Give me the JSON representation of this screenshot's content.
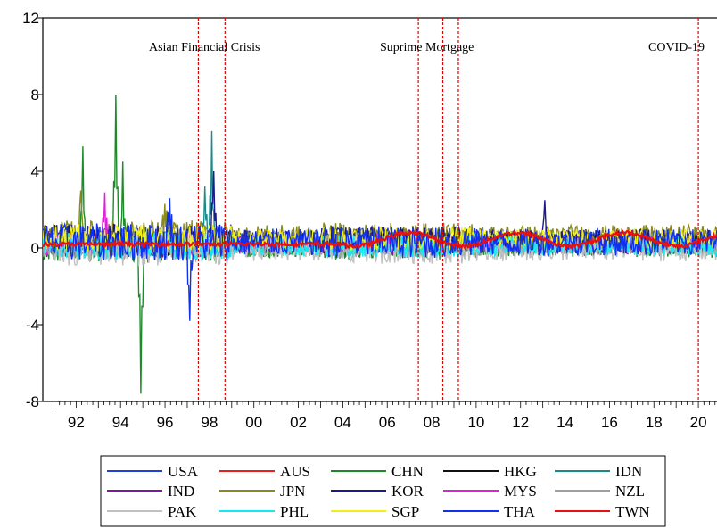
{
  "chart_data": {
    "type": "line",
    "title": "",
    "xlabel": "",
    "ylabel": "",
    "xlim": [
      1990.5,
      2021.0
    ],
    "ylim": [
      -8,
      12
    ],
    "yticks": [
      -8,
      -4,
      0,
      4,
      8,
      12
    ],
    "yticklabels": [
      "-8",
      "-4",
      "0",
      "4",
      "8",
      "12"
    ],
    "xticks": [
      1992,
      1994,
      1996,
      1998,
      2000,
      2002,
      2004,
      2006,
      2008,
      2010,
      2012,
      2014,
      2016,
      2018,
      2020
    ],
    "xticklabels": [
      "92",
      "94",
      "96",
      "98",
      "00",
      "02",
      "04",
      "06",
      "08",
      "10",
      "12",
      "14",
      "16",
      "18",
      "20"
    ],
    "grid": false,
    "legend_position": "bottom",
    "events": [
      {
        "label": "Asian Financial Crisis",
        "lines": [
          1997.5,
          1998.7
        ]
      },
      {
        "label": "Suprime Mortgage",
        "lines": [
          2007.4,
          2008.5,
          2009.2
        ]
      },
      {
        "label": "COVID-19",
        "lines": [
          2020.0
        ]
      }
    ],
    "series": [
      {
        "name": "USA",
        "color": "#1f3fd8",
        "base": 0.35,
        "amp": 0.6
      },
      {
        "name": "AUS",
        "color": "#e8201c",
        "base": 0.1,
        "amp": 0.15
      },
      {
        "name": "CHN",
        "color": "#1e8a2a",
        "base": 0.0,
        "amp": 0.5,
        "peaks": [
          [
            1993.8,
            8.0
          ],
          [
            1992.3,
            5.3
          ],
          [
            1994.9,
            -7.6
          ],
          [
            1994.1,
            4.5
          ]
        ]
      },
      {
        "name": "HKG",
        "color": "#111111",
        "base": 0.3,
        "amp": 0.5
      },
      {
        "name": "IDN",
        "color": "#1a8a8a",
        "base": 0.2,
        "amp": 0.5,
        "peaks": [
          [
            1998.1,
            6.1
          ],
          [
            1997.8,
            3.2
          ]
        ]
      },
      {
        "name": "IND",
        "color": "#7a1a9a",
        "base": 0.2,
        "amp": 0.5
      },
      {
        "name": "JPN",
        "color": "#8a8a1a",
        "base": 0.6,
        "amp": 0.6,
        "peaks": [
          [
            1992.2,
            3.0
          ],
          [
            1996.0,
            2.3
          ]
        ]
      },
      {
        "name": "KOR",
        "color": "#1a1a8a",
        "base": 0.4,
        "amp": 0.6,
        "peaks": [
          [
            1998.2,
            4.0
          ],
          [
            2013.1,
            2.5
          ]
        ]
      },
      {
        "name": "MYS",
        "color": "#e020d8",
        "base": 0.2,
        "amp": 0.4,
        "peaks": [
          [
            1993.3,
            2.9
          ]
        ]
      },
      {
        "name": "NZL",
        "color": "#a0a0a0",
        "base": 0.1,
        "amp": 0.5
      },
      {
        "name": "PAK",
        "color": "#c0c0c0",
        "base": -0.1,
        "amp": 0.6
      },
      {
        "name": "PHL",
        "color": "#18e8f0",
        "base": 0.1,
        "amp": 0.5
      },
      {
        "name": "SGP",
        "color": "#f0f018",
        "base": 0.5,
        "amp": 0.5
      },
      {
        "name": "THA",
        "color": "#1030f0",
        "base": 0.3,
        "amp": 0.7,
        "peaks": [
          [
            1997.1,
            -3.8
          ],
          [
            1996.2,
            2.6
          ]
        ]
      },
      {
        "name": "TWN",
        "color": "#e81010",
        "base": 0.15,
        "amp": 0.2
      }
    ]
  }
}
